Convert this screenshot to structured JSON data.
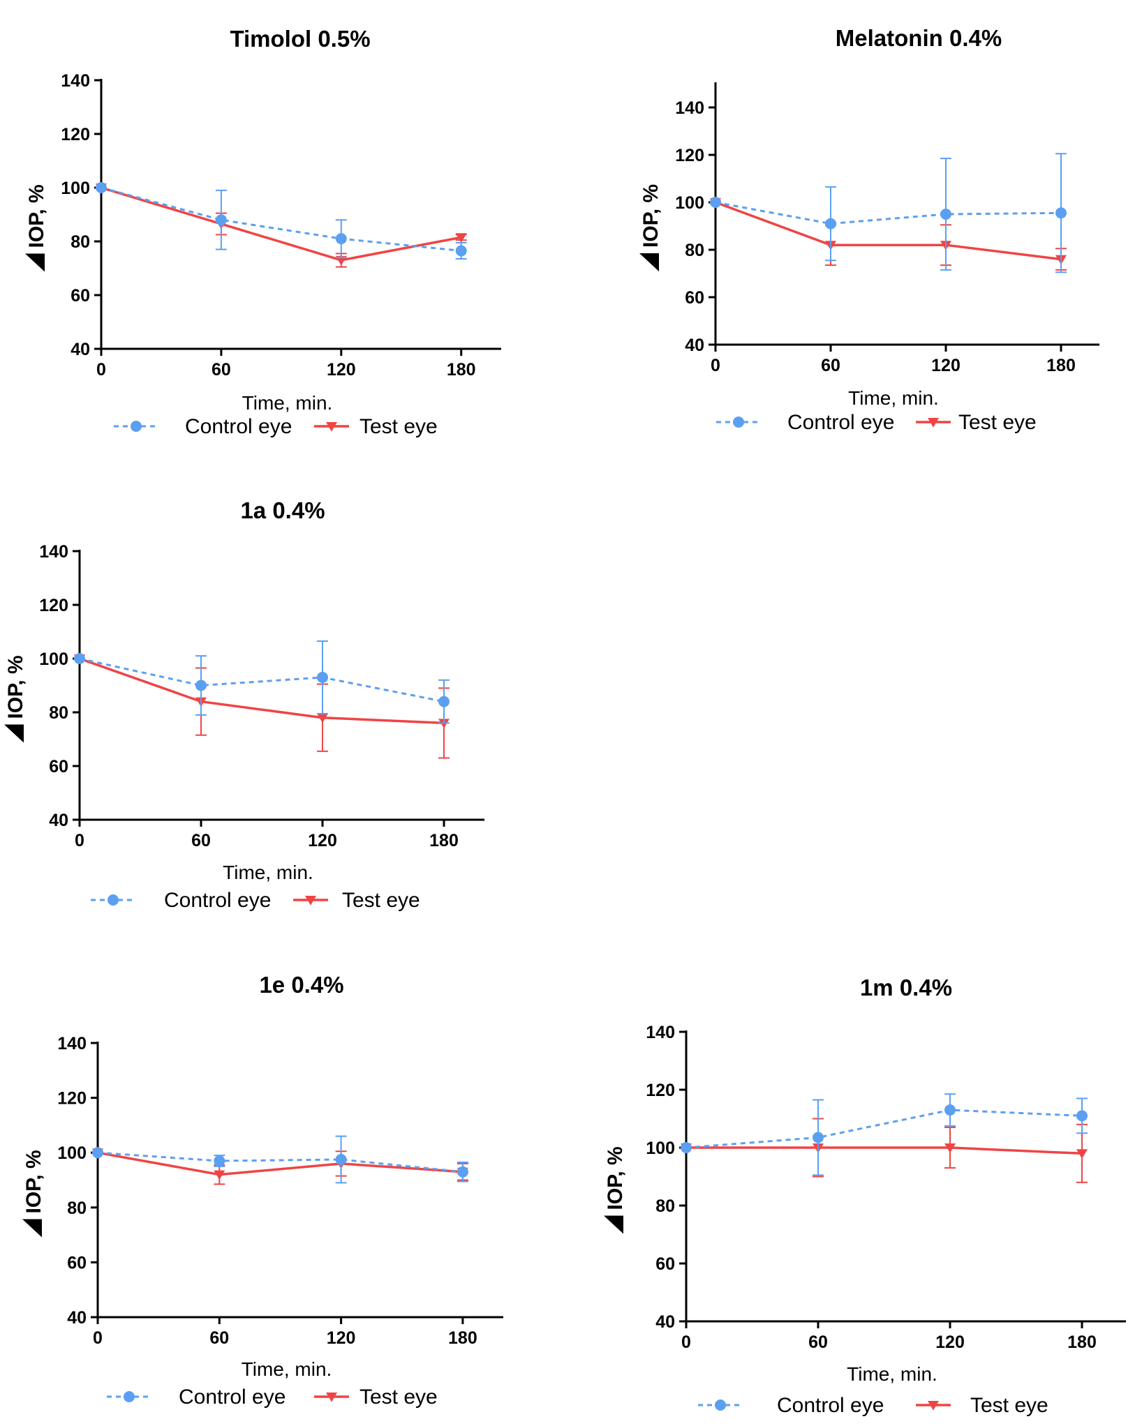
{
  "colors": {
    "control": "#5b9ff1",
    "test": "#f04444",
    "axis": "#000000"
  },
  "legend": {
    "control_label": "Control eye",
    "test_label": "Test eye"
  },
  "chart_data": [
    {
      "type": "line",
      "title": "Timolol 0.5%",
      "xlabel": "Time, min.",
      "ylabel": "IOP, %",
      "ylabel_prefix_symbol": "delta-triangle",
      "x": [
        0,
        60,
        120,
        180
      ],
      "x_ticks": [
        "0",
        "60",
        "120",
        "180"
      ],
      "xlim": [
        0,
        200
      ],
      "y_ticks": [
        "40",
        "60",
        "80",
        "100",
        "120",
        "140"
      ],
      "ylim": [
        40,
        140
      ],
      "legend_position": "bottom",
      "series": [
        {
          "name": "Control eye",
          "style": "dashed",
          "marker": "circle",
          "values": [
            100,
            88,
            81,
            76.5
          ],
          "error": [
            null,
            11,
            7,
            3
          ]
        },
        {
          "name": "Test eye",
          "style": "solid",
          "marker": "triangle-down",
          "values": [
            100,
            86.5,
            73,
            81.5
          ],
          "error": [
            null,
            4,
            2.5,
            1
          ]
        }
      ]
    },
    {
      "type": "line",
      "title": "Melatonin 0.4%",
      "xlabel": "Time, min.",
      "ylabel": "IOP, %",
      "ylabel_prefix_symbol": "delta-triangle",
      "x": [
        0,
        60,
        120,
        180
      ],
      "x_ticks": [
        "0",
        "60",
        "120",
        "180"
      ],
      "xlim": [
        0,
        200
      ],
      "y_ticks": [
        "40",
        "60",
        "80",
        "100",
        "120",
        "140"
      ],
      "ylim": [
        40,
        150
      ],
      "legend_position": "bottom",
      "series": [
        {
          "name": "Control eye",
          "style": "dashed",
          "marker": "circle",
          "values": [
            100,
            91,
            95,
            95.5
          ],
          "error": [
            null,
            15.5,
            23.5,
            25
          ]
        },
        {
          "name": "Test eye",
          "style": "solid",
          "marker": "triangle-down",
          "values": [
            100,
            82,
            82,
            76
          ],
          "error": [
            null,
            8.5,
            8.5,
            4.5
          ]
        }
      ]
    },
    {
      "type": "line",
      "title": "1a 0.4%",
      "xlabel": "Time, min.",
      "ylabel": "IOP, %",
      "ylabel_prefix_symbol": "delta-triangle",
      "x": [
        0,
        60,
        120,
        180
      ],
      "x_ticks": [
        "0",
        "60",
        "120",
        "180"
      ],
      "xlim": [
        0,
        200
      ],
      "y_ticks": [
        "40",
        "60",
        "80",
        "100",
        "120",
        "140"
      ],
      "ylim": [
        40,
        140
      ],
      "legend_position": "bottom",
      "series": [
        {
          "name": "Control eye",
          "style": "dashed",
          "marker": "circle",
          "values": [
            100,
            90,
            93,
            84
          ],
          "error": [
            null,
            11,
            13.5,
            8
          ]
        },
        {
          "name": "Test eye",
          "style": "solid",
          "marker": "triangle-down",
          "values": [
            100,
            84,
            78,
            76
          ],
          "error": [
            null,
            12.5,
            12.5,
            13
          ]
        }
      ]
    },
    {
      "type": "line",
      "title": "1e 0.4%",
      "xlabel": "Time, min.",
      "ylabel": "IOP, %",
      "ylabel_prefix_symbol": "delta-triangle",
      "x": [
        0,
        60,
        120,
        180
      ],
      "x_ticks": [
        "0",
        "60",
        "120",
        "180"
      ],
      "xlim": [
        0,
        200
      ],
      "y_ticks": [
        "40",
        "60",
        "80",
        "100",
        "120",
        "140"
      ],
      "ylim": [
        40,
        140
      ],
      "legend_position": "bottom",
      "series": [
        {
          "name": "Control eye",
          "style": "dashed",
          "marker": "circle",
          "values": [
            100,
            97,
            97.5,
            93
          ],
          "error": [
            null,
            2,
            8.5,
            3.5
          ]
        },
        {
          "name": "Test eye",
          "style": "solid",
          "marker": "triangle-down",
          "values": [
            100,
            92,
            96,
            93
          ],
          "error": [
            null,
            3.5,
            4.5,
            3
          ]
        }
      ]
    },
    {
      "type": "line",
      "title": "1m 0.4%",
      "xlabel": "Time, min.",
      "ylabel": "IOP, %",
      "ylabel_prefix_symbol": "delta-triangle",
      "x": [
        0,
        60,
        120,
        180
      ],
      "x_ticks": [
        "0",
        "60",
        "120",
        "180"
      ],
      "xlim": [
        0,
        200
      ],
      "y_ticks": [
        "40",
        "60",
        "80",
        "100",
        "120",
        "140"
      ],
      "ylim": [
        40,
        140
      ],
      "legend_position": "bottom",
      "series": [
        {
          "name": "Control eye",
          "style": "dashed",
          "marker": "circle",
          "values": [
            100,
            103.5,
            113,
            111
          ],
          "error": [
            null,
            13,
            5.5,
            6
          ]
        },
        {
          "name": "Test eye",
          "style": "solid",
          "marker": "triangle-down",
          "values": [
            100,
            100,
            100,
            98
          ],
          "error": [
            null,
            10,
            7,
            10
          ]
        }
      ]
    }
  ]
}
